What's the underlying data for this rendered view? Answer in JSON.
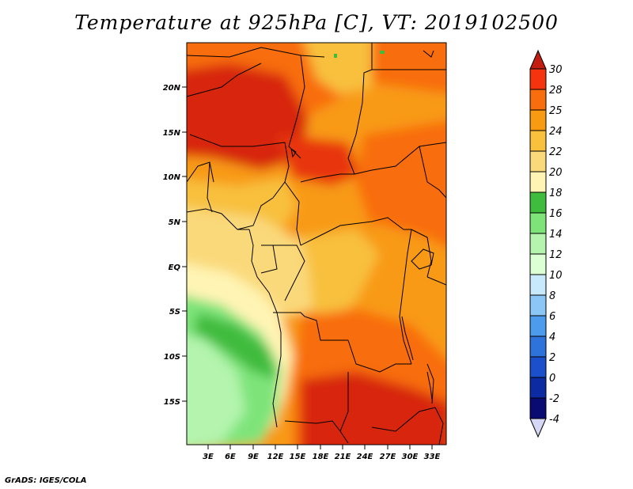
{
  "title": "Temperature at 925hPa [C], VT: 2019102500",
  "credit": "GrADS: IGES/COLA",
  "map": {
    "lat_labels": [
      "20N",
      "15N",
      "10N",
      "5N",
      "EQ",
      "5S",
      "10S",
      "15S"
    ],
    "lon_labels": [
      "3E",
      "6E",
      "9E",
      "12E",
      "15E",
      "18E",
      "21E",
      "24E",
      "27E",
      "30E",
      "33E"
    ]
  },
  "colorbar": {
    "labels": [
      "30",
      "28",
      "25",
      "24",
      "22",
      "20",
      "18",
      "16",
      "14",
      "12",
      "10",
      "8",
      "6",
      "4",
      "2",
      "0",
      "-2",
      "-4"
    ],
    "colors": [
      "#f5330f",
      "#f86d0d",
      "#f89a12",
      "#f8c03c",
      "#fad97a",
      "#fff4b4",
      "#3fbb3e",
      "#7ee47a",
      "#b4f4ae",
      "#dcffd4",
      "#c8e8fb",
      "#8cc6f6",
      "#4c9bec",
      "#2e72db",
      "#1b4fcc",
      "#0c2ba3",
      "#0a0a73"
    ],
    "top_cap_color": "#c21d10",
    "bottom_cap_color": "#d6d6f6"
  },
  "colors": {
    "hot": "#c71e0f",
    "warm": "#f5330f",
    "orange": "#f86d0d",
    "amber": "#f89a12",
    "gold": "#f8c03c",
    "pale": "#fad97a",
    "cream": "#fff4b4",
    "green": "#3fbb3e",
    "lightgreen": "#7ee47a",
    "palegreen": "#b4f4ae"
  }
}
